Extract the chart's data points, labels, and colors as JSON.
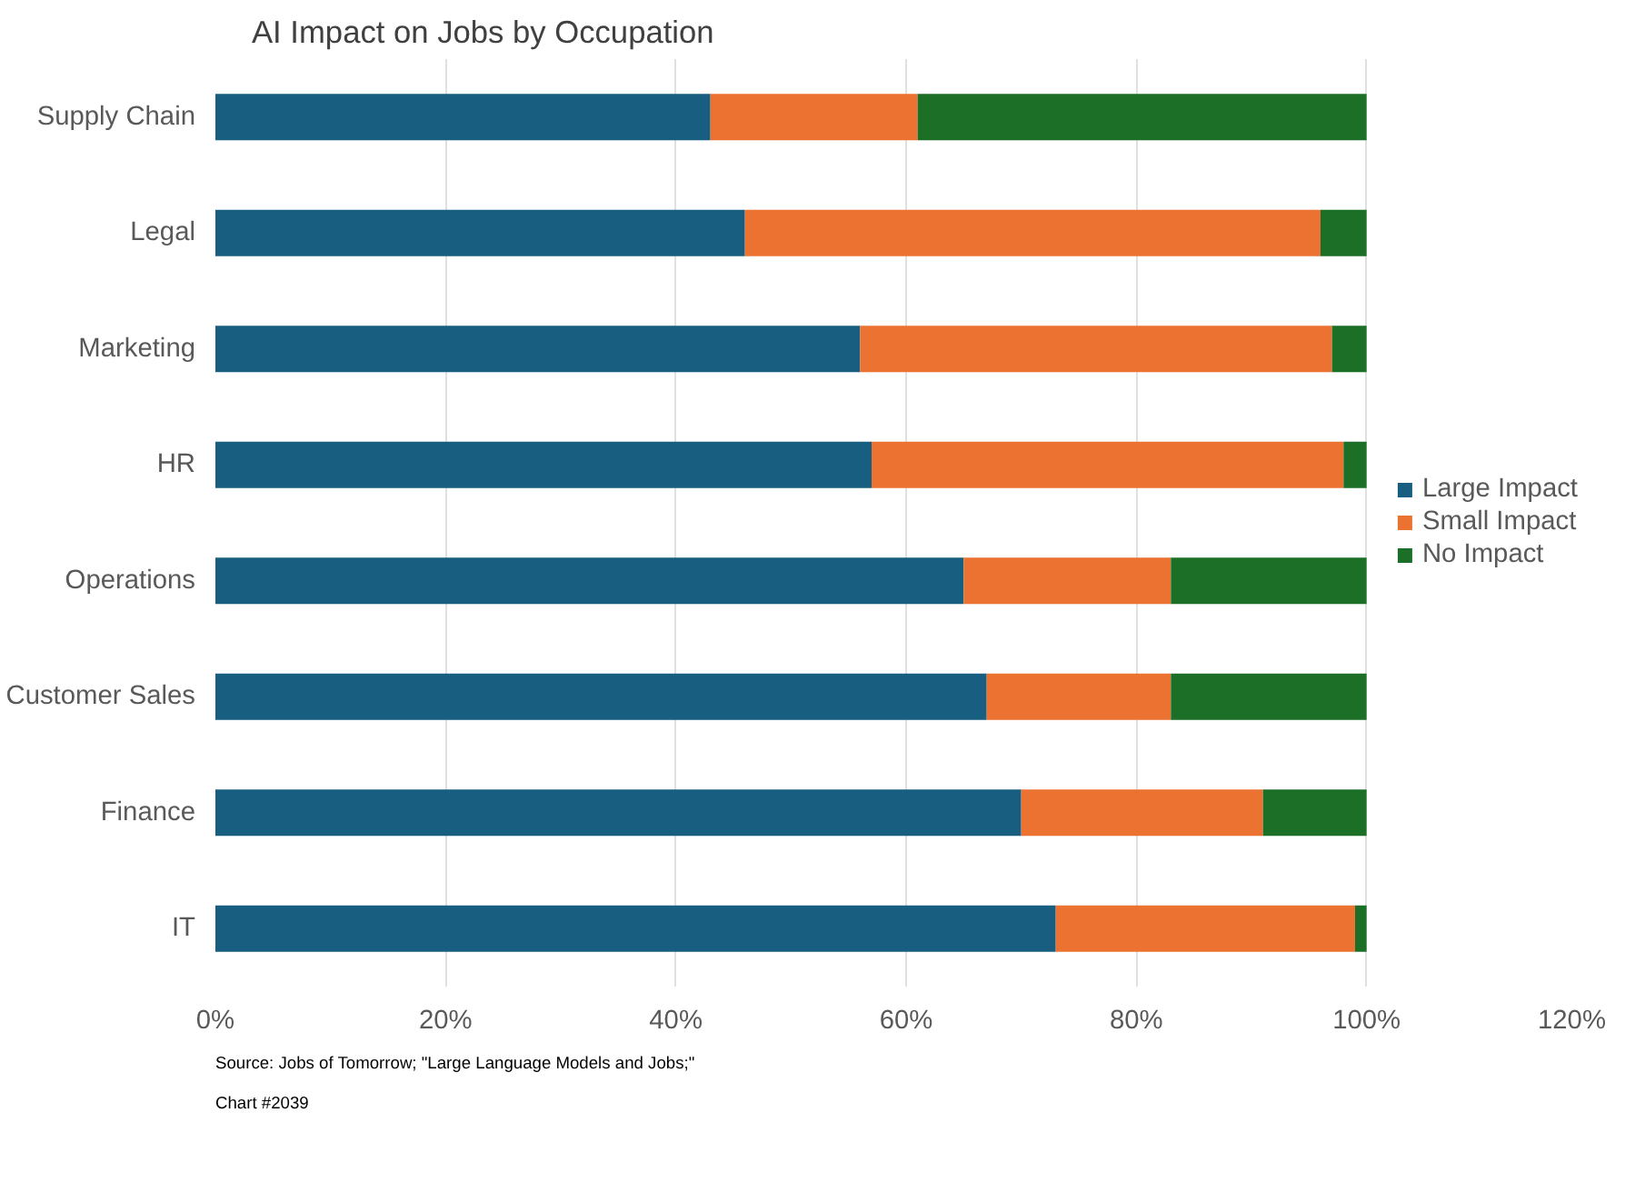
{
  "chart_data": {
    "type": "bar",
    "orientation": "horizontal",
    "stacked": true,
    "title": "AI Impact on Jobs by Occupation",
    "categories": [
      "Supply Chain",
      "Legal",
      "Marketing",
      "HR",
      "Operations",
      "Customer Sales",
      "Finance",
      "IT"
    ],
    "series": [
      {
        "name": "Large Impact",
        "color": "#175e81",
        "values": [
          43,
          46,
          56,
          57,
          65,
          67,
          70,
          73
        ]
      },
      {
        "name": "Small Impact",
        "color": "#ec7232",
        "values": [
          18,
          50,
          41,
          41,
          18,
          16,
          21,
          26
        ]
      },
      {
        "name": "No Impact",
        "color": "#1b6f26",
        "values": [
          39,
          4,
          3,
          2,
          17,
          17,
          9,
          1
        ]
      }
    ],
    "xlim": [
      0,
      120
    ],
    "xticks": [
      {
        "value": 0,
        "label": "0%"
      },
      {
        "value": 20,
        "label": "20%"
      },
      {
        "value": 40,
        "label": "40%"
      },
      {
        "value": 60,
        "label": "60%"
      },
      {
        "value": 80,
        "label": "80%"
      },
      {
        "value": 100,
        "label": "100%"
      },
      {
        "value": 120,
        "label": "120%"
      }
    ],
    "grid": "x",
    "legend": "right",
    "annotations": [
      "Source: Jobs of Tomorrow; \"Large Language Models and Jobs;\"",
      "Chart #2039"
    ]
  }
}
